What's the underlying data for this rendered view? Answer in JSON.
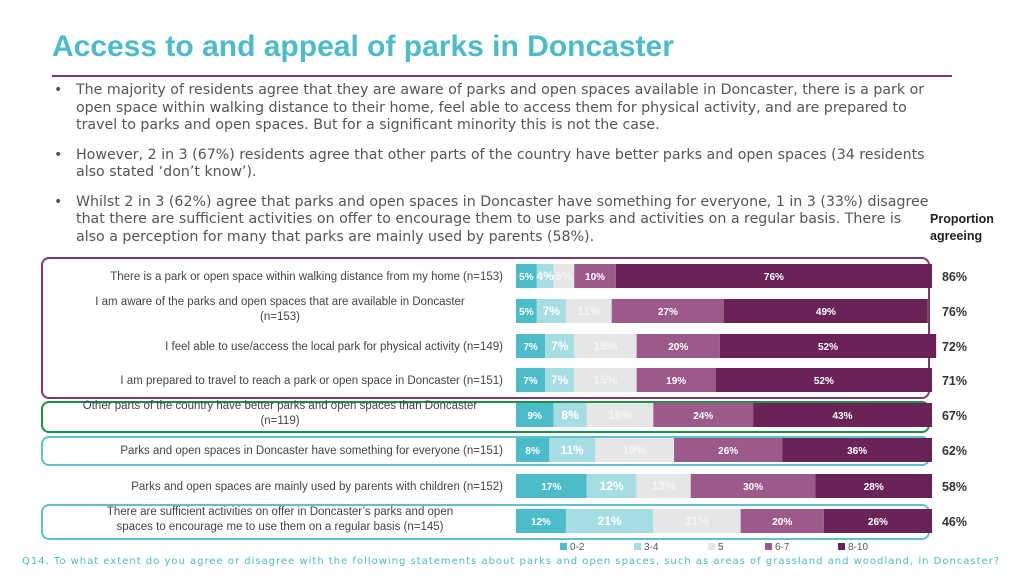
{
  "page": {
    "title": "Access to and appeal of parks in Doncaster",
    "bullets": [
      "The majority of residents agree that they are aware of parks and open spaces available in Doncaster, there is a park or open space within walking distance to their home, feel able to access them for physical activity, and are prepared to travel to parks and open spaces. But for a significant minority this is not the case.",
      "However, 2 in 3 (67%) residents agree that other parts of the country have better parks and open spaces (34 residents also stated ‘don’t know’).",
      "Whilst 2 in 3 (62%) agree that parks and open spaces in Doncaster have something for everyone, 1 in 3 (33%) disagree that there are sufficient activities on offer to encourage them to use parks and activities on a regular basis. There is also a perception for many that parks are mainly used by parents (58%)."
    ],
    "proportion_header": "Proportion agreeing",
    "footer": "Q14. To what extent do you agree or disagree with the following statements about parks and open spaces, such as areas of grassland and woodland, in Doncaster?"
  },
  "colors": {
    "title": "#4bbcc8",
    "group_purple": "#7b3a6b",
    "group_green": "#1f8f4a",
    "group_teal": "#5cc3cc",
    "segments": [
      "#4bbcc8",
      "#a6dde2",
      "#e6e6e6",
      "#9b5a8a",
      "#6a2356"
    ]
  },
  "chart_data": {
    "type": "bar",
    "orientation": "horizontal",
    "stacked": true,
    "categories": [
      "There is a park or open space within walking distance from my home (n=153)",
      "I am aware of the parks and open spaces that are available in Doncaster (n=153)",
      "I feel able to use/access the local park for physical activity (n=149)",
      "I am prepared to travel to reach a park or open space in Doncaster (n=151)",
      "Other parts of the country have better parks and open spaces than Doncaster (n=119)",
      "Parks and open spaces in Doncaster have something for everyone (n=151)",
      "Parks and open spaces are mainly used by parents with children (n=152)",
      "There are sufficient activities on offer in Doncaster’s parks and open spaces to encourage me to use them on a regular basis (n=145)"
    ],
    "series": [
      {
        "name": "0-2",
        "values": [
          5,
          5,
          7,
          7,
          9,
          8,
          17,
          12
        ]
      },
      {
        "name": "3-4",
        "values": [
          4,
          7,
          7,
          7,
          8,
          11,
          12,
          21
        ]
      },
      {
        "name": "5",
        "values": [
          5,
          11,
          15,
          15,
          16,
          19,
          13,
          21
        ]
      },
      {
        "name": "6-7",
        "values": [
          10,
          27,
          20,
          19,
          24,
          26,
          30,
          20
        ]
      },
      {
        "name": "8-10",
        "values": [
          76,
          49,
          52,
          52,
          43,
          36,
          28,
          26
        ]
      }
    ],
    "proportion_agreeing": [
      "86%",
      "76%",
      "72%",
      "71%",
      "67%",
      "62%",
      "58%",
      "46%"
    ],
    "xlim": [
      0,
      100
    ],
    "legend_position": "bottom"
  }
}
